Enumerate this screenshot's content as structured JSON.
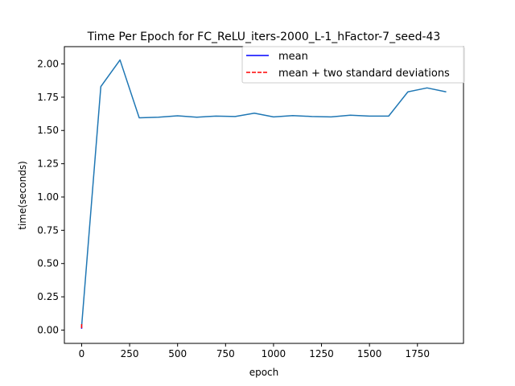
{
  "chart_data": {
    "type": "line",
    "title": "Time Per Epoch for FC_ReLU_iters-2000_L-1_hFactor-7_seed-43",
    "xlabel": "epoch",
    "ylabel": "time(seconds)",
    "xlim": [
      -90,
      1990
    ],
    "ylim": [
      -0.1,
      2.13
    ],
    "x_ticks": [
      0,
      250,
      500,
      750,
      1000,
      1250,
      1500,
      1750
    ],
    "y_ticks": [
      0.0,
      0.25,
      0.5,
      0.75,
      1.0,
      1.25,
      1.5,
      1.75,
      2.0
    ],
    "x_tick_labels": [
      "0",
      "250",
      "500",
      "750",
      "1000",
      "1250",
      "1500",
      "1750"
    ],
    "y_tick_labels": [
      "0.00",
      "0.25",
      "0.50",
      "0.75",
      "1.00",
      "1.25",
      "1.50",
      "1.75",
      "2.00"
    ],
    "grid": false,
    "legend_position": "top-right",
    "legend": [
      {
        "label": "mean",
        "color": "#0000ff",
        "style": "solid"
      },
      {
        "label": "mean + two standard deviations",
        "color": "#ff0000",
        "style": "dashed"
      }
    ],
    "series": [
      {
        "color": "#1f77b4",
        "style": "solid",
        "x": [
          0,
          100,
          200,
          300,
          400,
          500,
          600,
          700,
          800,
          900,
          1000,
          1100,
          1200,
          1300,
          1400,
          1500,
          1600,
          1700,
          1800,
          1900
        ],
        "y": [
          0.03,
          1.83,
          2.03,
          1.595,
          1.6,
          1.61,
          1.6,
          1.608,
          1.605,
          1.63,
          1.602,
          1.612,
          1.605,
          1.602,
          1.615,
          1.608,
          1.608,
          1.79,
          1.82,
          1.79
        ]
      },
      {
        "color": "#0000ff",
        "style": "solid",
        "x": [
          0,
          0
        ],
        "y": [
          0.01,
          0.03
        ]
      },
      {
        "color": "#ff0000",
        "style": "dashed",
        "x": [
          0,
          0
        ],
        "y": [
          0.015,
          0.045
        ]
      }
    ]
  }
}
